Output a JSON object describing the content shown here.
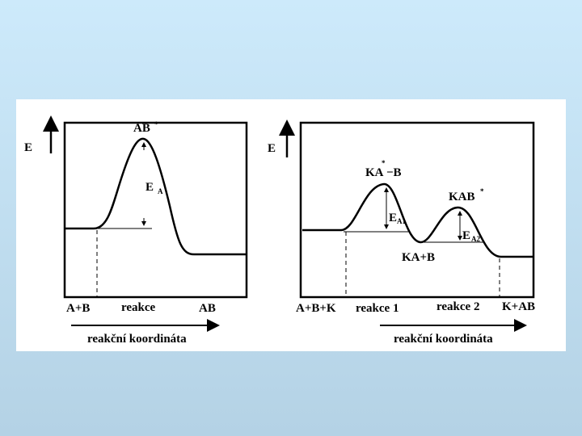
{
  "left_panel": {
    "axis_label": "E",
    "peak_label": {
      "text": "AB",
      "mark": "*"
    },
    "activation_label": {
      "text": "E",
      "sub": "A"
    },
    "x_labels": [
      "A+B",
      "reakce",
      "AB"
    ],
    "axis_title": "reakční koordináta"
  },
  "right_panel": {
    "axis_label": "E",
    "peak1_label": {
      "text": "KA",
      "mark": "*",
      "suffix": "−B"
    },
    "peak2_label": {
      "text": "KAB",
      "mark": "*"
    },
    "activation1_label": {
      "text": "E",
      "sub": "A1"
    },
    "activation2_label": {
      "text": "E",
      "sub": "A2"
    },
    "intermediate_label": "KA+B",
    "x_labels": [
      "A+B+K",
      "reakce 1",
      "reakce 2",
      "K+AB"
    ],
    "axis_title": "reakční koordináta"
  }
}
